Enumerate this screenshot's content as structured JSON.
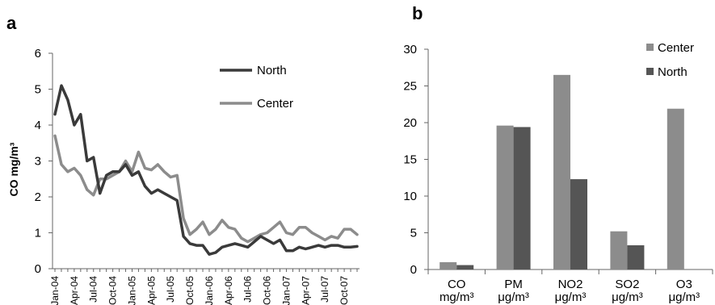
{
  "panels": {
    "a": "a",
    "b": "b"
  },
  "chart_data": [
    {
      "type": "line",
      "ylabel": "CO mg/m³",
      "ylim": [
        0,
        6
      ],
      "yticks": [
        0,
        1,
        2,
        3,
        4,
        5,
        6
      ],
      "xticks": [
        "Jan-04",
        "Apr-04",
        "Jul-04",
        "Oct-04",
        "Jan-05",
        "Apr-05",
        "Jul-05",
        "Oct-05",
        "Jan-06",
        "Apr-06",
        "Jul-06",
        "Oct-06",
        "Jan-07",
        "Apr-07",
        "Jul-07",
        "Oct-07"
      ],
      "x": [
        "Jan-04",
        "Feb-04",
        "Mar-04",
        "Apr-04",
        "May-04",
        "Jun-04",
        "Jul-04",
        "Aug-04",
        "Sep-04",
        "Oct-04",
        "Nov-04",
        "Dec-04",
        "Jan-05",
        "Feb-05",
        "Mar-05",
        "Apr-05",
        "May-05",
        "Jun-05",
        "Jul-05",
        "Aug-05",
        "Sep-05",
        "Oct-05",
        "Nov-05",
        "Dec-05",
        "Jan-06",
        "Feb-06",
        "Mar-06",
        "Apr-06",
        "May-06",
        "Jun-06",
        "Jul-06",
        "Aug-06",
        "Sep-06",
        "Oct-06",
        "Nov-06",
        "Dec-06",
        "Jan-07",
        "Feb-07",
        "Mar-07",
        "Apr-07",
        "May-07",
        "Jun-07",
        "Jul-07",
        "Aug-07",
        "Sep-07",
        "Oct-07",
        "Nov-07",
        "Dec-07"
      ],
      "series": [
        {
          "name": "North",
          "color": "#3a3a3a",
          "values": [
            4.3,
            5.1,
            4.7,
            4.0,
            4.3,
            3.0,
            3.1,
            2.1,
            2.6,
            2.7,
            2.7,
            2.9,
            2.6,
            2.7,
            2.3,
            2.1,
            2.2,
            2.1,
            2.0,
            1.9,
            0.9,
            0.7,
            0.65,
            0.65,
            0.4,
            0.45,
            0.6,
            0.65,
            0.7,
            0.65,
            0.6,
            0.75,
            0.9,
            0.8,
            0.7,
            0.8,
            0.5,
            0.5,
            0.6,
            0.55,
            0.6,
            0.65,
            0.6,
            0.65,
            0.65,
            0.6,
            0.6,
            0.62
          ]
        },
        {
          "name": "Center",
          "color": "#8c8c8c",
          "values": [
            3.7,
            2.9,
            2.7,
            2.8,
            2.6,
            2.2,
            2.05,
            2.5,
            2.5,
            2.6,
            2.7,
            3.0,
            2.7,
            3.25,
            2.8,
            2.75,
            2.9,
            2.7,
            2.55,
            2.6,
            1.4,
            0.95,
            1.1,
            1.3,
            0.95,
            1.1,
            1.35,
            1.15,
            1.1,
            0.85,
            0.75,
            0.85,
            0.95,
            1.0,
            1.15,
            1.3,
            1.0,
            0.95,
            1.15,
            1.15,
            1.0,
            0.9,
            0.8,
            0.9,
            0.85,
            1.1,
            1.1,
            0.95
          ]
        }
      ]
    },
    {
      "type": "bar",
      "ylim": [
        0,
        30
      ],
      "yticks": [
        0,
        5,
        10,
        15,
        20,
        25,
        30
      ],
      "categories": [
        {
          "name": "CO",
          "unit": "mg/m³"
        },
        {
          "name": "PM",
          "unit": "μg/m³"
        },
        {
          "name": "NO2",
          "unit": "μg/m³"
        },
        {
          "name": "SO2",
          "unit": "μg/m³"
        },
        {
          "name": "O3",
          "unit": "μg/m³"
        }
      ],
      "series": [
        {
          "name": "Center",
          "color": "#8c8c8c",
          "values": [
            1.0,
            19.6,
            26.5,
            5.2,
            21.9
          ]
        },
        {
          "name": "North",
          "color": "#555555",
          "values": [
            0.6,
            19.4,
            12.3,
            3.3,
            null
          ]
        }
      ]
    }
  ]
}
